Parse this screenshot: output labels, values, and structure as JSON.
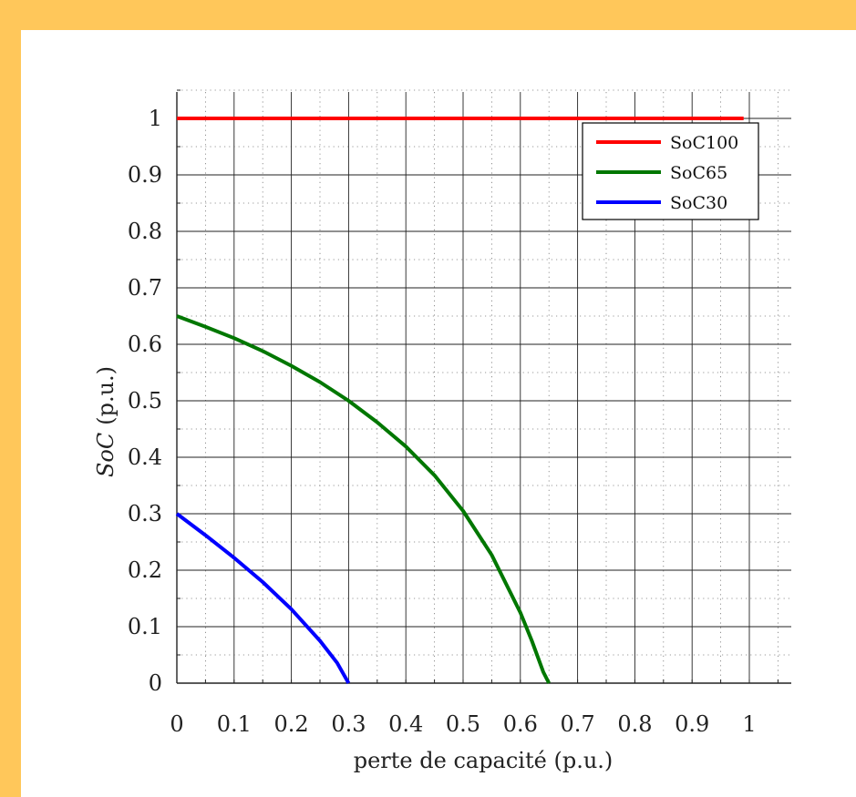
{
  "chart_data": {
    "type": "line",
    "title": "",
    "xlabel": "perte de capacité (p.u.)",
    "ylabel": "SoC (p.u.)",
    "ylabel_parts": {
      "symbol": "SoC",
      "unit": "(p.u.)"
    },
    "xlim": [
      0,
      1.05
    ],
    "ylim": [
      0,
      1.05
    ],
    "x_ticks": [
      "0",
      "0.1",
      "0.2",
      "0.3",
      "0.4",
      "0.5",
      "0.6",
      "0.7",
      "0.8",
      "0.9",
      "1"
    ],
    "x_tick_values": [
      0,
      0.1,
      0.2,
      0.3,
      0.4,
      0.5,
      0.6,
      0.7,
      0.8,
      0.9,
      1
    ],
    "y_ticks": [
      "0",
      "0.1",
      "0.2",
      "0.3",
      "0.4",
      "0.5",
      "0.6",
      "0.7",
      "0.8",
      "0.9",
      "1"
    ],
    "y_tick_values": [
      0,
      0.1,
      0.2,
      0.3,
      0.4,
      0.5,
      0.6,
      0.7,
      0.8,
      0.9,
      1
    ],
    "grid": true,
    "minor_grid": true,
    "legend": "top-right",
    "series": [
      {
        "name": "SoC100",
        "color": "#FF0000",
        "x": [
          0,
          0.25,
          0.5,
          0.75,
          0.99
        ],
        "y": [
          1,
          1,
          1,
          1,
          1
        ]
      },
      {
        "name": "SoC65",
        "color": "#007700",
        "x": [
          0,
          0.05,
          0.1,
          0.15,
          0.2,
          0.25,
          0.3,
          0.35,
          0.4,
          0.45,
          0.5,
          0.55,
          0.6,
          0.62,
          0.64,
          0.65
        ],
        "y": [
          0.65,
          0.631,
          0.611,
          0.588,
          0.562,
          0.533,
          0.5,
          0.462,
          0.419,
          0.368,
          0.305,
          0.227,
          0.125,
          0.075,
          0.02,
          0
        ]
      },
      {
        "name": "SoC30",
        "color": "#0000FF",
        "x": [
          0,
          0.05,
          0.1,
          0.15,
          0.2,
          0.25,
          0.28,
          0.3
        ],
        "y": [
          0.3,
          0.262,
          0.222,
          0.179,
          0.131,
          0.075,
          0.036,
          0
        ]
      }
    ]
  }
}
